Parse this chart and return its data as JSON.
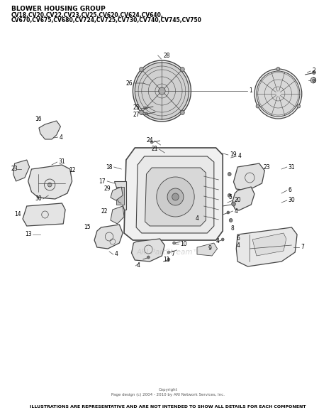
{
  "title_bold": "BLOWER HOUSING GROUP",
  "title_sub": "CV18,CV20,CV22,CV23,CV25,CV620,CV624,CV640,\nCV670,CV675,CV680,CV724,CV725,CV730,CV740,CV745,CV750",
  "footer_copy": "Copyright\nPage design (c) 2004 - 2010 by ARI Network Services, Inc.",
  "footer_bold": "ILLUSTRATIONS ARE REPRESENTATIVE AND ARE NOT INTENDED TO SHOW ALL DETAILS FOR EACH COMPONENT",
  "watermark": "ARI PartStream™",
  "bg_color": "#ffffff",
  "text_color": "#000000",
  "line_color": "#444444",
  "lw": 0.8
}
